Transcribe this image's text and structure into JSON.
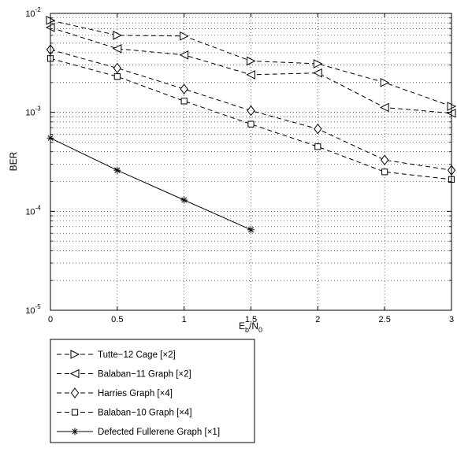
{
  "chart_data": {
    "type": "line",
    "xlabel_main": "E",
    "xlabel_sub1": "b",
    "xlabel_mid": "/N",
    "xlabel_sub2": "0",
    "ylabel": "BER",
    "ylog": true,
    "xlim": [
      0,
      3
    ],
    "ylim": [
      1e-05,
      0.01
    ],
    "grid": true,
    "legend_position": "below",
    "x_ticks": [
      "0",
      "0.5",
      "1",
      "1.5",
      "2",
      "2.5",
      "3"
    ],
    "y_ticks": [
      {
        "base": "10",
        "exp": "-5",
        "value": 1e-05
      },
      {
        "base": "10",
        "exp": "-4",
        "value": 0.0001
      },
      {
        "base": "10",
        "exp": "-3",
        "value": 0.001
      },
      {
        "base": "10",
        "exp": "-2",
        "value": 0.01
      }
    ],
    "series": [
      {
        "name": "Tutte−12 Cage [×2]",
        "marker": "triangle-right",
        "dash": "dashed",
        "x": [
          0,
          0.5,
          1,
          1.5,
          2,
          2.5,
          3
        ],
        "y": [
          0.0085,
          0.006,
          0.0059,
          0.0033,
          0.0031,
          0.002,
          0.00115
        ]
      },
      {
        "name": "Balaban−11 Graph [×2]",
        "marker": "triangle-left",
        "dash": "dashed",
        "x": [
          0,
          0.5,
          1,
          1.5,
          2,
          2.5,
          3
        ],
        "y": [
          0.0072,
          0.0044,
          0.0038,
          0.0024,
          0.0025,
          0.00112,
          0.00098
        ]
      },
      {
        "name": "Harries Graph [×4]",
        "marker": "diamond",
        "dash": "dashed",
        "x": [
          0,
          0.5,
          1,
          1.5,
          2,
          2.5,
          3
        ],
        "y": [
          0.0043,
          0.0028,
          0.00172,
          0.00104,
          0.00068,
          0.00033,
          0.00026
        ]
      },
      {
        "name": "Balaban−10 Graph [×4]",
        "marker": "square",
        "dash": "dashed",
        "x": [
          0,
          0.5,
          1,
          1.5,
          2,
          2.5,
          3
        ],
        "y": [
          0.0035,
          0.0023,
          0.0013,
          0.00076,
          0.00045,
          0.00025,
          0.00021
        ]
      },
      {
        "name": "Defected Fullerene Graph [×1]",
        "marker": "star",
        "dash": "solid",
        "x": [
          0,
          0.5,
          1,
          1.5
        ],
        "y": [
          0.00055,
          0.00026,
          0.00013,
          6.5e-05
        ]
      }
    ]
  }
}
